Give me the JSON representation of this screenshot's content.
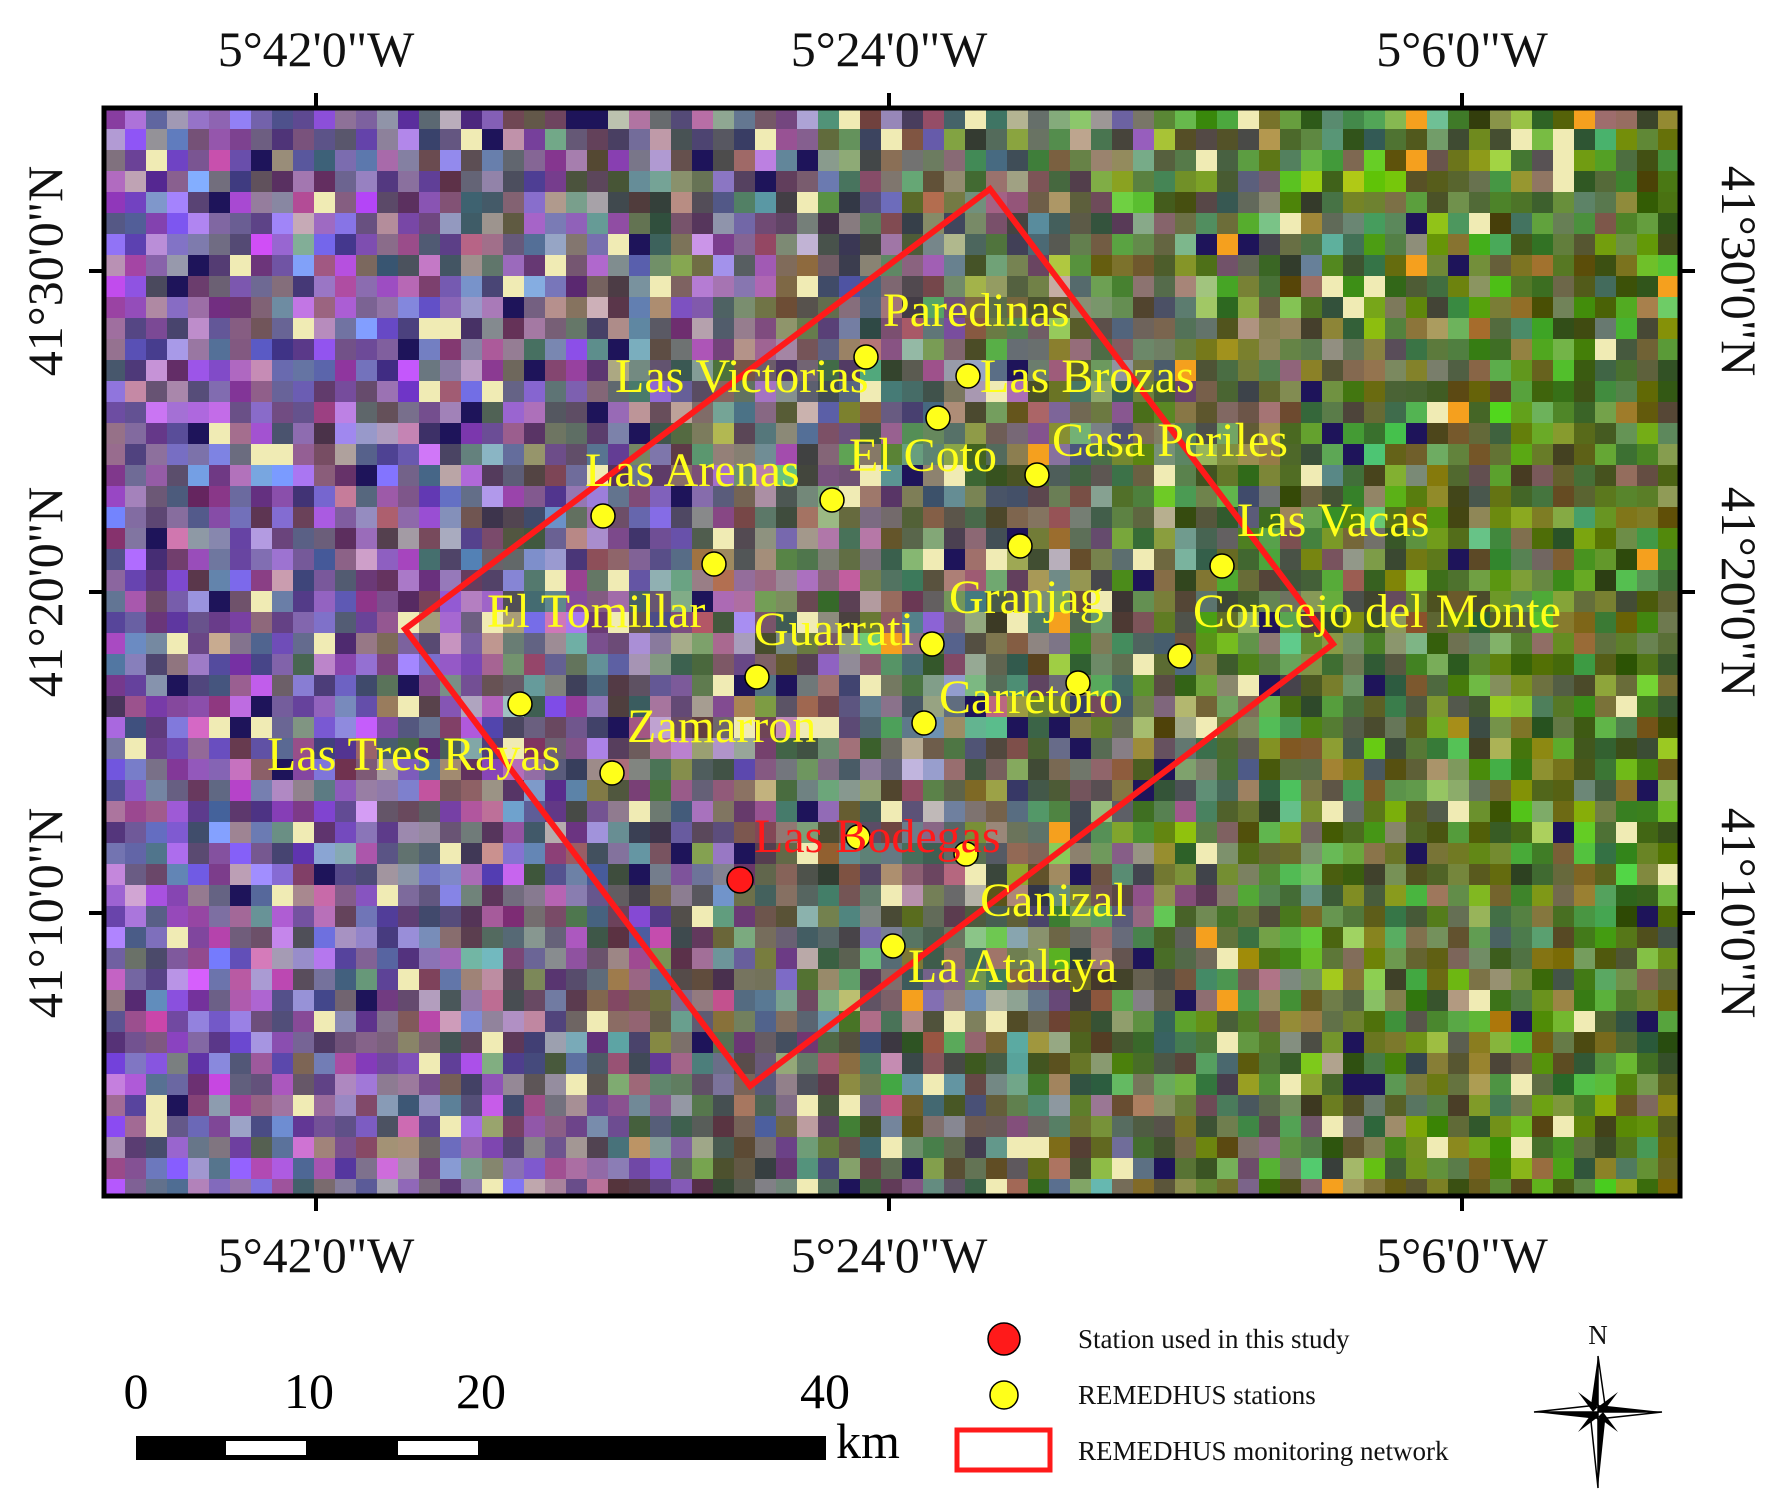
{
  "map": {
    "colors": {
      "frame": "#000000",
      "network": "#ff1a1a",
      "station": "#ffff1a",
      "station_used": "#ff1a1a",
      "label": "#ffff1a",
      "label_used": "#ff1a1a"
    },
    "x_ticks": [
      "5°42'0\"W",
      "5°24'0\"W",
      "5°6'0\"W"
    ],
    "y_ticks": [
      "41°30'0\"N",
      "41°20'0\"N",
      "41°10'0\"N"
    ]
  },
  "stations": [
    {
      "name": "Paredinas",
      "type": "remedhus"
    },
    {
      "name": "Las Victorias",
      "type": "remedhus"
    },
    {
      "name": "Las Brozas",
      "type": "remedhus"
    },
    {
      "name": "El Coto",
      "type": "remedhus"
    },
    {
      "name": "Casa Periles",
      "type": "remedhus"
    },
    {
      "name": "Las Arenas",
      "type": "remedhus"
    },
    {
      "name": "Las Vacas",
      "type": "remedhus"
    },
    {
      "name": "Granjag",
      "type": "remedhus"
    },
    {
      "name": "El Tomillar",
      "type": "remedhus"
    },
    {
      "name": "Concejo del Monte",
      "type": "remedhus"
    },
    {
      "name": "Guarrati",
      "type": "remedhus"
    },
    {
      "name": "Carretoro",
      "type": "remedhus"
    },
    {
      "name": "Zamarron",
      "type": "remedhus"
    },
    {
      "name": "Las Tres Rayas",
      "type": "remedhus"
    },
    {
      "name": "Las Bodegas",
      "type": "used"
    },
    {
      "name": "Canizal",
      "type": "remedhus"
    },
    {
      "name": "La Atalaya",
      "type": "remedhus"
    }
  ],
  "legend": {
    "used": "Station used in this study",
    "remedhus": "REMEDHUS stations",
    "network": "REMEDHUS monitoring network"
  },
  "scale_bar": {
    "ticks": [
      "0",
      "10",
      "20",
      "40"
    ],
    "unit": "km"
  },
  "north_arrow": {
    "label": "N"
  }
}
